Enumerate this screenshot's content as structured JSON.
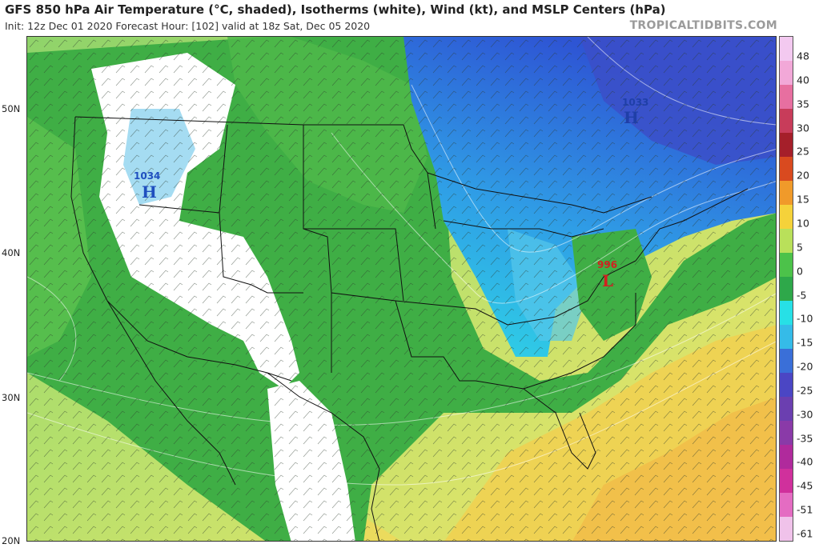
{
  "header": {
    "title": "GFS 850 hPa Air Temperature (°C, shaded), Isotherms (white), Wind (kt), and MSLP Centers (hPa)",
    "subtitle": "Init: 12z Dec 01 2020   Forecast Hour: [102]   valid at 18z Sat, Dec 05 2020",
    "brand": "TROPICALTIDBITS.COM"
  },
  "map": {
    "lat_labels": [
      "50N",
      "40N",
      "30N",
      "20N"
    ],
    "pressure_centers": [
      {
        "type": "high",
        "letter": "H",
        "value": "1034",
        "color": "#1f4fbf"
      },
      {
        "type": "high",
        "letter": "H",
        "value": "1033",
        "color": "#1f4fbf"
      },
      {
        "type": "low",
        "letter": "L",
        "value": "996",
        "color": "#d22020"
      }
    ]
  },
  "colorbar": {
    "labels": [
      "48",
      "40",
      "35",
      "30",
      "25",
      "20",
      "15",
      "10",
      "5",
      "0",
      "-5",
      "-10",
      "-15",
      "-20",
      "-25",
      "-30",
      "-35",
      "-40",
      "-45",
      "-51",
      "-61"
    ],
    "colors": [
      "#f3c9f0",
      "#f2a8d8",
      "#e76fa0",
      "#c83c5a",
      "#a51f2a",
      "#d94a1f",
      "#f09a2a",
      "#f5d23a",
      "#b9e05a",
      "#4cc24a",
      "#2ea84a",
      "#27e0e6",
      "#35bbe8",
      "#3a6fd8",
      "#4b46c4",
      "#6b3fb0",
      "#8a3aa8",
      "#b02a9c",
      "#d0309c",
      "#e46cc2",
      "#f0c2ea"
    ]
  }
}
